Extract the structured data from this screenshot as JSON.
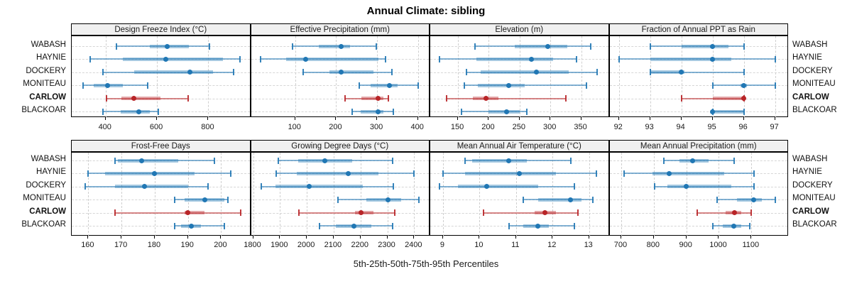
{
  "title": "Annual Climate: sibling",
  "caption": "5th-25th-50th-75th-95th Percentiles",
  "sites": [
    "WABASH",
    "HAYNIE",
    "DOCKERY",
    "MONITEAU",
    "CARLOW",
    "BLACKOAR"
  ],
  "highlight_site": "CARLOW",
  "colors": {
    "series": "#2077b4",
    "highlight": "#b82427",
    "strip_bg": "#f0f0f0",
    "grid": "#cfcfcf",
    "panel_border": "#000000"
  },
  "chart_data": {
    "type": "scatter",
    "subtype": "percentile-range-dotplot",
    "percentiles": [
      5,
      25,
      50,
      75,
      95
    ],
    "grid": "dashed",
    "legend_position": "none",
    "panels": [
      {
        "title": "Design Freeze Index (°C)",
        "xlim": [
          268,
          966
        ],
        "ticks": [
          400,
          600,
          800
        ],
        "series": [
          {
            "site": "WABASH",
            "values": [
              441,
              572,
              641,
              724,
              803
            ]
          },
          {
            "site": "HAYNIE",
            "values": [
              340,
              466,
              634,
              858,
              924
            ]
          },
          {
            "site": "DOCKERY",
            "values": [
              391,
              510,
              729,
              817,
              897
            ]
          },
          {
            "site": "MONITEAU",
            "values": [
              312,
              353,
              408,
              466,
              563
            ]
          },
          {
            "site": "CARLOW",
            "values": [
              404,
              462,
              510,
              614,
              720
            ]
          },
          {
            "site": "BLACKOAR",
            "values": [
              391,
              459,
              528,
              572,
              605
            ]
          }
        ]
      },
      {
        "title": "Effective Precipitation (mm)",
        "xlim": [
          -8,
          430
        ],
        "ticks": [
          100,
          200,
          300,
          400
        ],
        "series": [
          {
            "site": "WABASH",
            "values": [
              94,
              158,
              213,
              234,
              299
            ]
          },
          {
            "site": "HAYNIE",
            "values": [
              16,
              77,
              126,
              303,
              320
            ]
          },
          {
            "site": "DOCKERY",
            "values": [
              120,
              183,
              213,
              292,
              337
            ]
          },
          {
            "site": "MONITEAU",
            "values": [
              257,
              285,
              330,
              350,
              400
            ]
          },
          {
            "site": "CARLOW",
            "values": [
              222,
              262,
              302,
              315,
              327
            ]
          },
          {
            "site": "BLACKOAR",
            "values": [
              239,
              260,
              303,
              315,
              340
            ]
          }
        ]
      },
      {
        "title": "Elevation (m)",
        "xlim": [
          105,
          396
        ],
        "ticks": [
          150,
          200,
          250,
          300,
          350
        ],
        "series": [
          {
            "site": "WABASH",
            "values": [
              178,
              242,
              296,
              327,
              366
            ]
          },
          {
            "site": "HAYNIE",
            "values": [
              120,
              180,
              269,
              304,
              342
            ]
          },
          {
            "site": "DOCKERY",
            "values": [
              164,
              187,
              277,
              330,
              376
            ]
          },
          {
            "site": "MONITEAU",
            "values": [
              160,
              182,
              232,
              258,
              358
            ]
          },
          {
            "site": "CARLOW",
            "values": [
              132,
              174,
              196,
              216,
              325
            ]
          },
          {
            "site": "BLACKOAR",
            "values": [
              156,
              200,
              229,
              250,
              262
            ]
          }
        ]
      },
      {
        "title": "Fraction of Annual PPT as Rain",
        "xlim": [
          91.7,
          97.44
        ],
        "ticks": [
          92,
          93,
          94,
          95,
          96,
          97
        ],
        "series": [
          {
            "site": "WABASH",
            "values": [
              93,
              94,
              95,
              95.5,
              96
            ]
          },
          {
            "site": "HAYNIE",
            "values": [
              92,
              93,
              95,
              95.6,
              97
            ]
          },
          {
            "site": "DOCKERY",
            "values": [
              93,
              93,
              94,
              94.1,
              96
            ]
          },
          {
            "site": "MONITEAU",
            "values": [
              95,
              95.9,
              96,
              96.1,
              97
            ]
          },
          {
            "site": "CARLOW",
            "values": [
              94,
              95,
              96,
              96,
              96
            ]
          },
          {
            "site": "BLACKOAR",
            "values": [
              95,
              95,
              95,
              96,
              96
            ]
          }
        ]
      },
      {
        "title": "Frost-Free Days",
        "xlim": [
          155,
          209
        ],
        "ticks": [
          160,
          170,
          180,
          190,
          200
        ],
        "series": [
          {
            "site": "WABASH",
            "values": [
              168,
              169,
              176,
              187,
              198
            ]
          },
          {
            "site": "HAYNIE",
            "values": [
              160,
              165,
              180,
              192,
              203
            ]
          },
          {
            "site": "DOCKERY",
            "values": [
              159,
              168,
              177,
              190,
              196
            ]
          },
          {
            "site": "MONITEAU",
            "values": [
              186,
              189,
              195,
              201,
              202
            ]
          },
          {
            "site": "CARLOW",
            "values": [
              168,
              189,
              190,
              195,
              206
            ]
          },
          {
            "site": "BLACKOAR",
            "values": [
              186,
              188,
              191,
              194,
              201
            ]
          }
        ]
      },
      {
        "title": "Growing Degree Days (°C)",
        "xlim": [
          1792,
          2460
        ],
        "ticks": [
          1800,
          1900,
          2000,
          2100,
          2200,
          2300,
          2400
        ],
        "series": [
          {
            "site": "WABASH",
            "values": [
              1893,
              1967,
              2066,
              2170,
              2320
            ]
          },
          {
            "site": "HAYNIE",
            "values": [
              1886,
              1963,
              2154,
              2267,
              2399
            ]
          },
          {
            "site": "DOCKERY",
            "values": [
              1831,
              1884,
              2009,
              2210,
              2322
            ]
          },
          {
            "site": "MONITEAU",
            "values": [
              2117,
              2223,
              2302,
              2352,
              2417
            ]
          },
          {
            "site": "CARLOW",
            "values": [
              1970,
              2179,
              2203,
              2249,
              2329
            ]
          },
          {
            "site": "BLACKOAR",
            "values": [
              2047,
              2108,
              2176,
              2241,
              2320
            ]
          }
        ]
      },
      {
        "title": "Mean Annual Air Temperature (°C)",
        "xlim": [
          8.65,
          13.56
        ],
        "ticks": [
          9,
          10,
          11,
          12,
          13
        ],
        "series": [
          {
            "site": "WABASH",
            "values": [
              9.6,
              9.8,
              10.8,
              11.3,
              12.5
            ]
          },
          {
            "site": "HAYNIE",
            "values": [
              9.0,
              9.6,
              11.1,
              12.1,
              13.2
            ]
          },
          {
            "site": "DOCKERY",
            "values": [
              8.9,
              9.4,
              10.2,
              11.6,
              12.6
            ]
          },
          {
            "site": "MONITEAU",
            "values": [
              11.2,
              11.6,
              12.5,
              12.8,
              13.1
            ]
          },
          {
            "site": "CARLOW",
            "values": [
              10.1,
              11.5,
              11.8,
              12.1,
              12.7
            ]
          },
          {
            "site": "BLACKOAR",
            "values": [
              10.8,
              11.2,
              11.6,
              11.9,
              12.6
            ]
          }
        ]
      },
      {
        "title": "Mean Annual Precipitation (mm)",
        "xlim": [
          664,
          1215
        ],
        "ticks": [
          700,
          800,
          900,
          1000,
          1100
        ],
        "series": [
          {
            "site": "WABASH",
            "values": [
              831,
              878,
              920,
              969,
              1047
            ]
          },
          {
            "site": "HAYNIE",
            "values": [
              709,
              795,
              847,
              1016,
              1107
            ]
          },
          {
            "site": "DOCKERY",
            "values": [
              803,
              842,
              900,
              1038,
              1109
            ]
          },
          {
            "site": "MONITEAU",
            "values": [
              995,
              1056,
              1106,
              1133,
              1173
            ]
          },
          {
            "site": "CARLOW",
            "values": [
              933,
              1020,
              1048,
              1069,
              1100
            ]
          },
          {
            "site": "BLACKOAR",
            "values": [
              982,
              1013,
              1045,
              1069,
              1094
            ]
          }
        ]
      }
    ]
  }
}
